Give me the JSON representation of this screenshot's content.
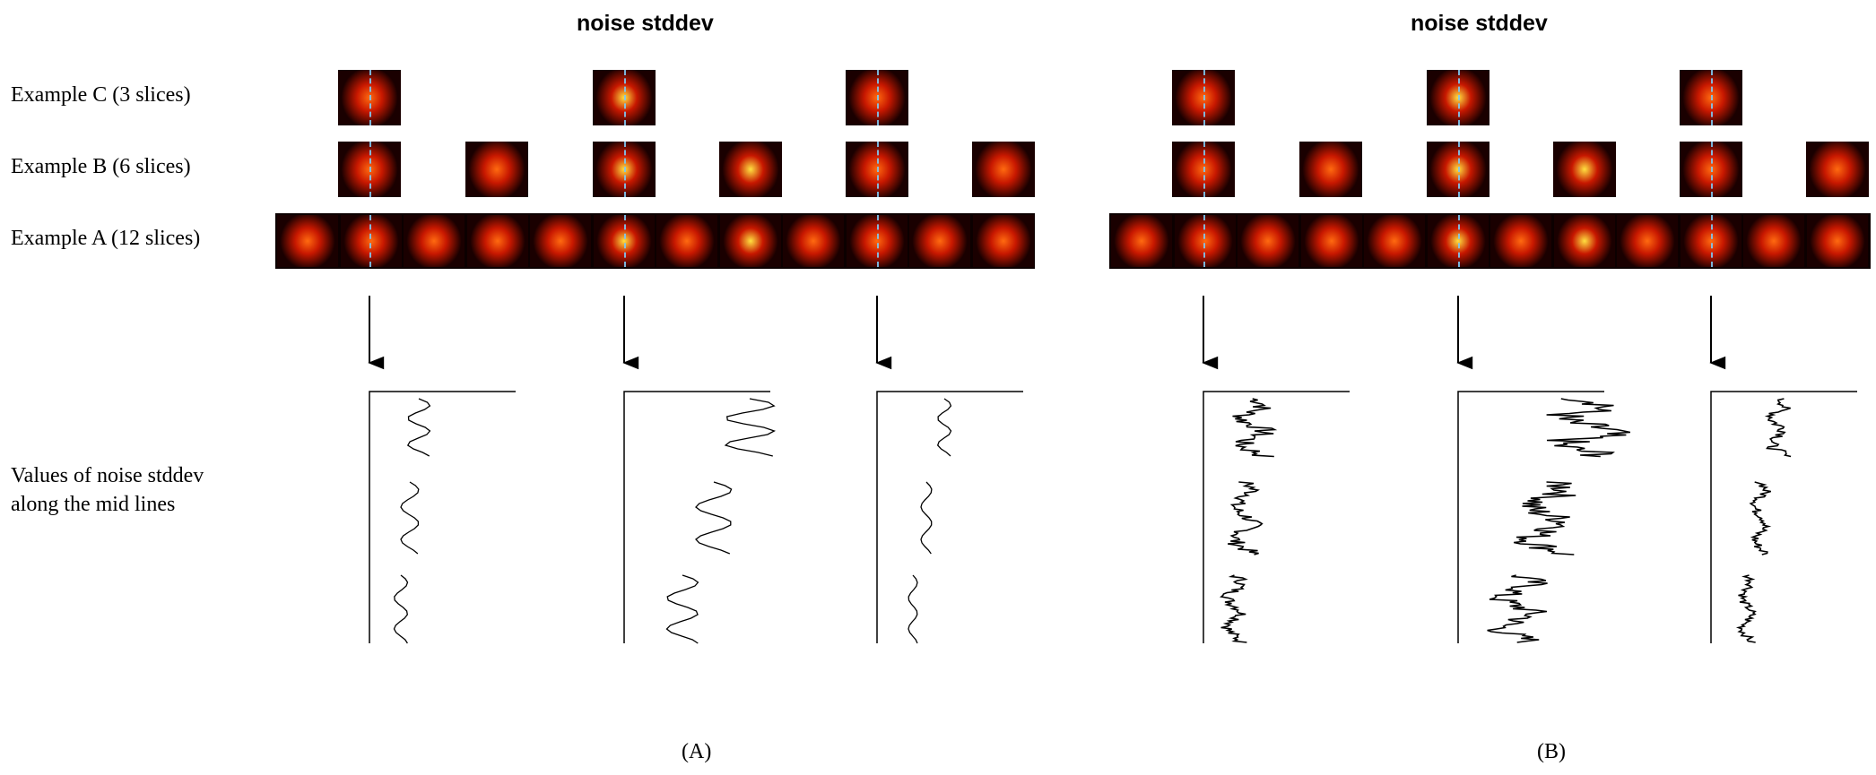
{
  "panels": [
    {
      "title": "noise stddev",
      "caption": "(A)"
    },
    {
      "title": "noise stddev",
      "caption": "(B)"
    }
  ],
  "row_labels": {
    "example_c": "Example C  (3 slices)",
    "example_b": "Example B  (6 slices)",
    "example_a": "Example A  (12 slices)"
  },
  "plot_label": {
    "line1": "Values of noise stddev",
    "line2": "along the mid lines"
  },
  "colors": {
    "heat_dark": "#1a0000",
    "heat_red": "#c81800",
    "heat_orange": "#ff6a10",
    "heat_yellow": "#ffe040",
    "midline": "#7fc8f0",
    "trace": "#000000"
  }
}
